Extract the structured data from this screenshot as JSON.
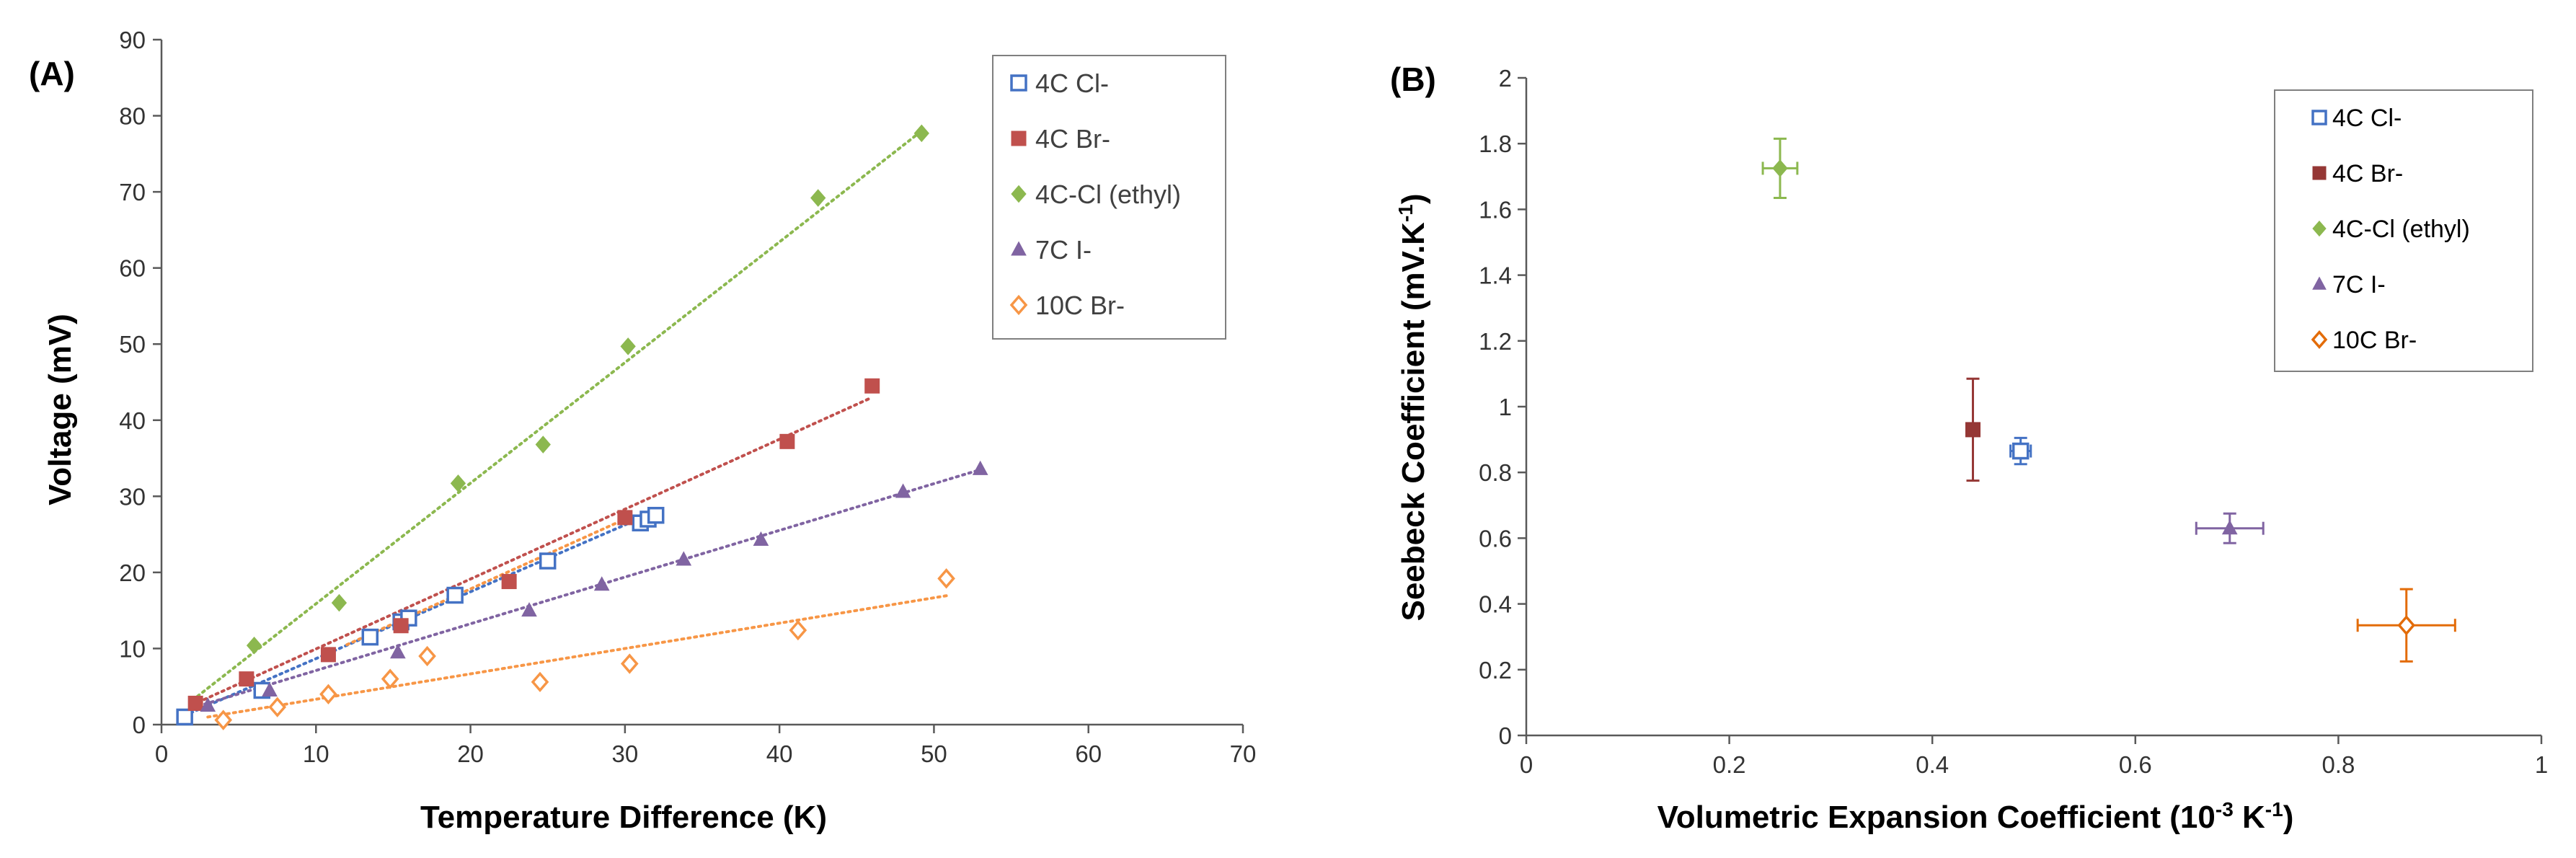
{
  "chart_data": [
    {
      "type": "scatter",
      "panel_label": "(A)",
      "xlabel": "Temperature Difference (K)",
      "ylabel": "Voltage (mV)",
      "xlim": [
        0,
        70
      ],
      "ylim": [
        0,
        90
      ],
      "xticks": [
        0,
        10,
        20,
        30,
        40,
        50,
        60,
        70
      ],
      "yticks": [
        0,
        10,
        20,
        30,
        40,
        50,
        60,
        70,
        80,
        90
      ],
      "xtick_labels": [
        "0",
        "10",
        "20",
        "30",
        "40",
        "50",
        "60",
        "70"
      ],
      "ytick_labels": [
        "0",
        "10",
        "20",
        "30",
        "40",
        "50",
        "60",
        "70",
        "80",
        "90"
      ],
      "grid": false,
      "legend_position": "top-right",
      "series": [
        {
          "name": "4C Cl-",
          "marker": "square-open",
          "color": "#4472C4",
          "x": [
            1.5,
            6.5,
            13.5,
            15.5,
            16,
            19,
            25,
            31,
            31.5,
            32
          ],
          "y": [
            1,
            4.5,
            11.5,
            13.5,
            14,
            17,
            21.5,
            26.5,
            27,
            27.5
          ],
          "trend": [
            [
              1.5,
              1.2
            ],
            [
              32,
              28
            ]
          ]
        },
        {
          "name": "4C Br-",
          "marker": "square",
          "color": "#C0504D",
          "x": [
            2.2,
            5.5,
            10.8,
            15.5,
            22.5,
            30,
            40.5,
            46
          ],
          "y": [
            2.8,
            6,
            9.2,
            13,
            18.8,
            27.2,
            37.2,
            44.5
          ],
          "trend": [
            [
              2,
              2.6
            ],
            [
              46,
              43
            ]
          ]
        },
        {
          "name": "4C-Cl (ethyl)",
          "marker": "diamond",
          "color": "#8CB84F",
          "x": [
            6,
            11.5,
            19.2,
            24.7,
            30.2,
            42.5,
            49.2
          ],
          "y": [
            10.4,
            16,
            31.7,
            36.8,
            49.7,
            69.2,
            77.7
          ],
          "trend": [
            [
              2,
              3.2
            ],
            [
              49.2,
              78
            ]
          ]
        },
        {
          "name": "7C I-",
          "marker": "triangle",
          "color": "#8064A2",
          "x": [
            3,
            7,
            15.3,
            23.8,
            28.5,
            33.8,
            38.8,
            48,
            53
          ],
          "y": [
            2.5,
            4.5,
            9.5,
            15,
            18.4,
            21.7,
            24.3,
            30.6,
            33.6
          ],
          "trend": [
            [
              2,
              2.2
            ],
            [
              53,
              33.5
            ]
          ]
        },
        {
          "name": "10C Br-",
          "marker": "diamond-open",
          "color": "#F79646",
          "x": [
            4,
            7.5,
            10.8,
            14.8,
            17.2,
            24.5,
            30.3,
            41.2,
            50.8
          ],
          "y": [
            0.6,
            2.3,
            4,
            6,
            9,
            5.6,
            8,
            12.4,
            19.2
          ],
          "trend": [
            [
              3,
              1
            ],
            [
              51,
              17
            ]
          ]
        }
      ],
      "extra_trend": {
        "color": "#F79646",
        "segment": [
          [
            12,
            10.5
          ],
          [
            30,
            27
          ]
        ]
      }
    },
    {
      "type": "scatter",
      "panel_label": "(B)",
      "xlabel": "Volumetric Expansion Coefficient (10",
      "xlabel_sup": "-3",
      "xlabel_end": " K",
      "xlabel_sup2": "-1",
      "xlabel_close": ")",
      "ylabel": "Seebeck Coefficient (mV.K",
      "ylabel_sup": "-1",
      "ylabel_close": ")",
      "xlim": [
        0,
        1
      ],
      "ylim": [
        0,
        2
      ],
      "xticks": [
        0,
        0.2,
        0.4,
        0.6,
        0.8,
        1
      ],
      "yticks": [
        0,
        0.2,
        0.4,
        0.6,
        0.8,
        1,
        1.2,
        1.4,
        1.6,
        1.8,
        2
      ],
      "xtick_labels": [
        "0",
        "0.2",
        "0.4",
        "0.6",
        "0.8",
        "1"
      ],
      "ytick_labels": [
        "0",
        "0.2",
        "0.4",
        "0.6",
        "0.8",
        "1",
        "1.2",
        "1.4",
        "1.6",
        "1.8",
        "2"
      ],
      "grid": false,
      "legend_position": "top-right",
      "series": [
        {
          "name": "4C Cl-",
          "marker": "square-open",
          "color": "#4472C4",
          "x": 0.487,
          "y": 0.865,
          "xerr": 0.01,
          "yerr": 0.04
        },
        {
          "name": "4C Br-",
          "marker": "square",
          "color": "#953735",
          "x": 0.44,
          "y": 0.93,
          "xerr": 0.0,
          "yerr": 0.155
        },
        {
          "name": "4C-Cl (ethyl)",
          "marker": "diamond",
          "color": "#8CB84F",
          "x": 0.25,
          "y": 1.725,
          "xerr": 0.017,
          "yerr": 0.09
        },
        {
          "name": "7C I-",
          "marker": "triangle",
          "color": "#8064A2",
          "x": 0.693,
          "y": 0.63,
          "xerr": 0.033,
          "yerr": 0.045
        },
        {
          "name": "10C Br-",
          "marker": "diamond-open",
          "color": "#E36C09",
          "x": 0.867,
          "y": 0.335,
          "xerr": 0.048,
          "yerr": 0.11
        }
      ]
    }
  ]
}
